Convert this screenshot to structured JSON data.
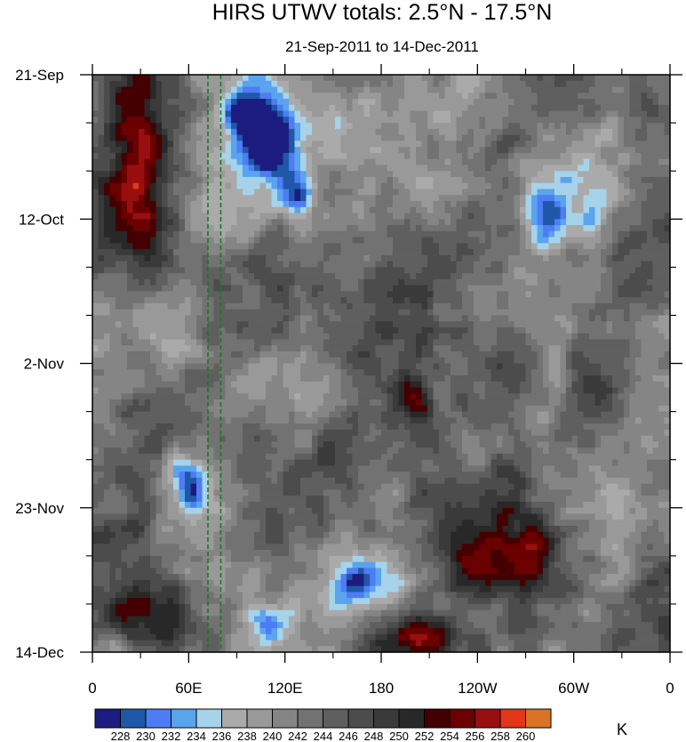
{
  "chart_data": {
    "type": "heatmap",
    "title": "HIRS UTWV totals: 2.5°N - 17.5°N",
    "subtitle": "21-Sep-2011 to 14-Dec-2011",
    "x_ticks": [
      "0",
      "60E",
      "120E",
      "180",
      "120W",
      "60W",
      "0"
    ],
    "x_tick_values": [
      0,
      60,
      120,
      180,
      240,
      300,
      360
    ],
    "xlim": [
      0,
      360
    ],
    "y_ticks": [
      "21-Sep",
      "12-Oct",
      "2-Nov",
      "23-Nov",
      "14-Dec"
    ],
    "y_tick_values": [
      0,
      21,
      42,
      63,
      84
    ],
    "ylim": [
      0,
      84
    ],
    "y_direction": "time increasing downward",
    "overlay_lines": [
      {
        "style": "dashed",
        "color": "#1a7a1a",
        "x_values": [
          72,
          80
        ]
      }
    ],
    "colorbar": {
      "levels": [
        "228",
        "230",
        "232",
        "234",
        "236",
        "238",
        "240",
        "242",
        "244",
        "246",
        "248",
        "250",
        "252",
        "254",
        "256",
        "258",
        "260"
      ],
      "colors": [
        "#1c1c80",
        "#1f58a8",
        "#4d7cf5",
        "#5aa4ee",
        "#a6d3ea",
        "#aaaaaa",
        "#999999",
        "#858585",
        "#727272",
        "#5f5f5f",
        "#4c4c4c",
        "#3a3a3a",
        "#282828",
        "#440000",
        "#6a0000",
        "#990f0f",
        "#e0361a",
        "#d97326"
      ],
      "units": "K"
    },
    "features": [
      {
        "cx": 12,
        "cy": 0.94,
        "rx": 4,
        "ry": 8,
        "level": 3
      },
      {
        "cx": 6,
        "cy": 0.1,
        "rx": 5,
        "ry": 14,
        "level": 3
      },
      {
        "cx": 5,
        "cy": 0.24,
        "rx": 6,
        "ry": 10,
        "level": 3
      },
      {
        "cx": 10,
        "cy": 0.22,
        "rx": 6,
        "ry": 14,
        "level": 4
      },
      {
        "cx": 7.5,
        "cy": 0.03,
        "rx": 6,
        "ry": 12,
        "level": 1.0
      },
      {
        "cx": 28,
        "cy": 0.08,
        "rx": 8,
        "ry": 14,
        "level": -5
      },
      {
        "cx": 30,
        "cy": 0.11,
        "rx": 4,
        "ry": 5,
        "level": -8
      },
      {
        "cx": 26,
        "cy": 0.06,
        "rx": 4,
        "ry": 3,
        "level": -7
      },
      {
        "cx": 40,
        "cy": 0.1,
        "rx": 12,
        "ry": 8,
        "level": -4
      },
      {
        "cx": 35,
        "cy": 0.2,
        "rx": 3,
        "ry": 5,
        "level": -6
      },
      {
        "cx": 22,
        "cy": 0.24,
        "rx": 6,
        "ry": 8,
        "level": -2
      },
      {
        "cx": 60,
        "cy": 0.2,
        "rx": 8,
        "ry": 6,
        "level": -3
      },
      {
        "cx": 80,
        "cy": 0.2,
        "rx": 10,
        "ry": 8,
        "level": -3
      },
      {
        "cx": 78,
        "cy": 0.24,
        "rx": 4,
        "ry": 5,
        "level": -6
      },
      {
        "cx": 71,
        "cy": 0.5,
        "rx": 5,
        "ry": 6,
        "level": 3
      },
      {
        "cx": 72,
        "cy": 0.7,
        "rx": 4,
        "ry": 10,
        "level": 2
      },
      {
        "cx": 60,
        "cy": 0.82,
        "rx": 10,
        "ry": 10,
        "level": 2
      },
      {
        "cx": 66,
        "cy": 0.85,
        "rx": 5,
        "ry": 6,
        "level": 4
      },
      {
        "cx": 55,
        "cy": 0.6,
        "rx": 18,
        "ry": 6,
        "level": 1.5
      },
      {
        "cx": 55,
        "cy": 0.55,
        "rx": 3,
        "ry": 4,
        "level": 4
      },
      {
        "cx": 7,
        "cy": 0.9,
        "rx": 6,
        "ry": 10,
        "level": 2
      },
      {
        "cx": 7,
        "cy": 0.75,
        "rx": 4,
        "ry": 10,
        "level": 2
      },
      {
        "cx": 5,
        "cy": 0.92,
        "rx": 5,
        "ry": 4,
        "level": 3
      },
      {
        "cx": 14,
        "cy": 0.42,
        "rx": 5,
        "ry": 10,
        "level": -3
      },
      {
        "cx": 15,
        "cy": 0.68,
        "rx": 5,
        "ry": 5,
        "level": -3
      },
      {
        "cx": 17,
        "cy": 0.72,
        "rx": 3,
        "ry": 4,
        "level": -6
      },
      {
        "cx": 28,
        "cy": 0.93,
        "rx": 10,
        "ry": 8,
        "level": -3
      },
      {
        "cx": 30,
        "cy": 0.95,
        "rx": 4,
        "ry": 4,
        "level": -5
      },
      {
        "cx": 38,
        "cy": 0.55,
        "rx": 6,
        "ry": 5,
        "level": -3
      },
      {
        "cx": 54,
        "cy": 0.96,
        "rx": 10,
        "ry": 5,
        "level": 3
      },
      {
        "cx": 56,
        "cy": 0.97,
        "rx": 6,
        "ry": 3,
        "level": 5
      },
      {
        "cx": 73,
        "cy": 0.97,
        "rx": 6,
        "ry": 5,
        "level": 2
      },
      {
        "cx": 74,
        "cy": 0.85,
        "rx": 5,
        "ry": 8,
        "level": 3
      },
      {
        "cx": 76,
        "cy": 0.88,
        "rx": 5,
        "ry": 7,
        "level": 2
      },
      {
        "cx": 76,
        "cy": 0.8,
        "rx": 4,
        "ry": 4,
        "level": 3
      },
      {
        "cx": 80,
        "cy": 0.5,
        "rx": 3,
        "ry": 6,
        "level": -4
      },
      {
        "cx": 76,
        "cy": 0.6,
        "rx": 4,
        "ry": 8,
        "level": -2
      },
      {
        "cx": 86,
        "cy": 0.25,
        "rx": 3,
        "ry": 5,
        "level": -2
      },
      {
        "cx": 86,
        "cy": 0.5,
        "rx": 4,
        "ry": 8,
        "level": 1
      },
      {
        "cx": 90,
        "cy": 0.8,
        "rx": 4,
        "ry": 8,
        "level": -3
      },
      {
        "cx": 80,
        "cy": 0.95,
        "rx": 5,
        "ry": 3,
        "level": 1
      },
      {
        "cx": 45,
        "cy": 0.4,
        "rx": 20,
        "ry": 15,
        "level": 1
      },
      {
        "cx": 55,
        "cy": 0.3,
        "rx": 8,
        "ry": 8,
        "level": 1.5
      },
      {
        "cx": 50,
        "cy": 0.87,
        "rx": 15,
        "ry": 10,
        "level": -2
      },
      {
        "cx": 45,
        "cy": 0.88,
        "rx": 5,
        "ry": 4,
        "level": -4
      },
      {
        "cx": 30,
        "cy": 0.75,
        "rx": 10,
        "ry": 15,
        "level": 1
      },
      {
        "cx": 62,
        "cy": 0.7,
        "rx": 8,
        "ry": 10,
        "level": 1
      },
      {
        "cx": 95,
        "cy": 0.1,
        "rx": 4,
        "ry": 15,
        "level": 1.2
      }
    ]
  }
}
